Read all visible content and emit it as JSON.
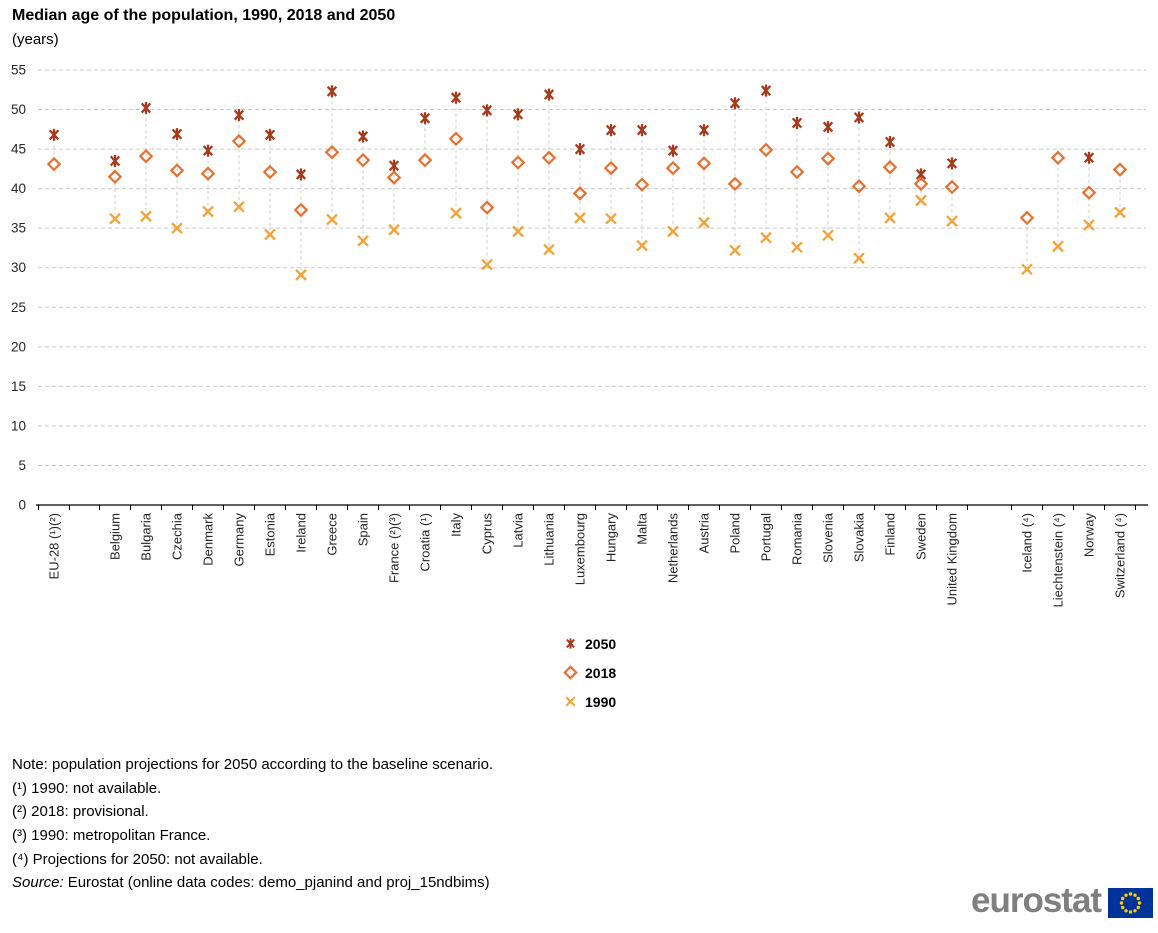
{
  "title": "Median age of the population, 1990, 2018 and 2050",
  "subtitle": "(years)",
  "legend": {
    "items": [
      {
        "label": "2050",
        "series": "2050"
      },
      {
        "label": "2018",
        "series": "2018"
      },
      {
        "label": "1990",
        "series": "1990"
      }
    ]
  },
  "notes": [
    "Note: population projections for 2050 according to the baseline scenario.",
    "(¹) 1990: not available.",
    "(²) 2018: provisional.",
    "(³) 1990: metropolitan France.",
    "(⁴) Projections for 2050: not available."
  ],
  "source": {
    "prefix": "Source:",
    "text": "Eurostat (online data codes: demo_pjanind and proj_15ndbims)"
  },
  "logo": {
    "text": "eurostat"
  },
  "chart_data": {
    "type": "scatter",
    "title": "Median age of the population, 1990, 2018 and 2050",
    "ylabel": "(years)",
    "xlabel": "",
    "ylim": [
      0,
      55
    ],
    "yticks": [
      0,
      5,
      10,
      15,
      20,
      25,
      30,
      35,
      40,
      45,
      50,
      55
    ],
    "grid": true,
    "legend_position": "bottom-center",
    "gap_after_indices": [
      0,
      28
    ],
    "grid_color": "#c9c9c9",
    "connector_color": "#cccccc",
    "axis_color": "#000000",
    "categories": [
      "EU-28 (¹)(²)",
      "Belgium",
      "Bulgaria",
      "Czechia",
      "Denmark",
      "Germany",
      "Estonia",
      "Ireland",
      "Greece",
      "Spain",
      "France (²)(³)",
      "Croatia (¹)",
      "Italy",
      "Cyprus",
      "Latvia",
      "Lithuania",
      "Luxembourg",
      "Hungary",
      "Malta",
      "Netherlands",
      "Austria",
      "Poland",
      "Portugal",
      "Romania",
      "Slovenia",
      "Slovakia",
      "Finland",
      "Sweden",
      "United Kingdom",
      "Iceland (⁴)",
      "Liechtenstein (⁴)",
      "Norway",
      "Switzerland (⁴)"
    ],
    "series": [
      {
        "name": "2050",
        "marker": "asterisk",
        "color": "#A63A1B",
        "values": [
          46.8,
          43.5,
          50.2,
          46.9,
          44.8,
          49.3,
          46.8,
          41.8,
          52.3,
          46.6,
          42.9,
          48.9,
          51.5,
          49.9,
          49.4,
          51.9,
          45.0,
          47.4,
          47.4,
          44.8,
          47.4,
          50.8,
          52.4,
          48.3,
          47.8,
          49.0,
          45.9,
          41.8,
          43.2,
          null,
          null,
          43.9,
          null
        ]
      },
      {
        "name": "2018",
        "marker": "diamond-open",
        "color": "#E8702E",
        "values": [
          43.1,
          41.5,
          44.1,
          42.3,
          41.9,
          46.0,
          42.1,
          37.3,
          44.6,
          43.6,
          41.4,
          43.6,
          46.3,
          37.6,
          43.3,
          43.9,
          39.4,
          42.6,
          40.5,
          42.6,
          43.2,
          40.6,
          44.9,
          42.1,
          43.8,
          40.3,
          42.7,
          40.6,
          40.2,
          36.3,
          43.9,
          39.5,
          42.4
        ]
      },
      {
        "name": "1990",
        "marker": "x",
        "color": "#F2A43A",
        "values": [
          null,
          36.2,
          36.5,
          35.0,
          37.1,
          37.7,
          34.2,
          29.1,
          36.1,
          33.4,
          34.8,
          null,
          36.9,
          30.4,
          34.6,
          32.3,
          36.3,
          36.2,
          32.8,
          34.6,
          35.7,
          32.2,
          33.8,
          32.6,
          34.1,
          31.2,
          36.3,
          38.5,
          35.9,
          29.8,
          32.7,
          35.4,
          37.0
        ]
      }
    ]
  }
}
